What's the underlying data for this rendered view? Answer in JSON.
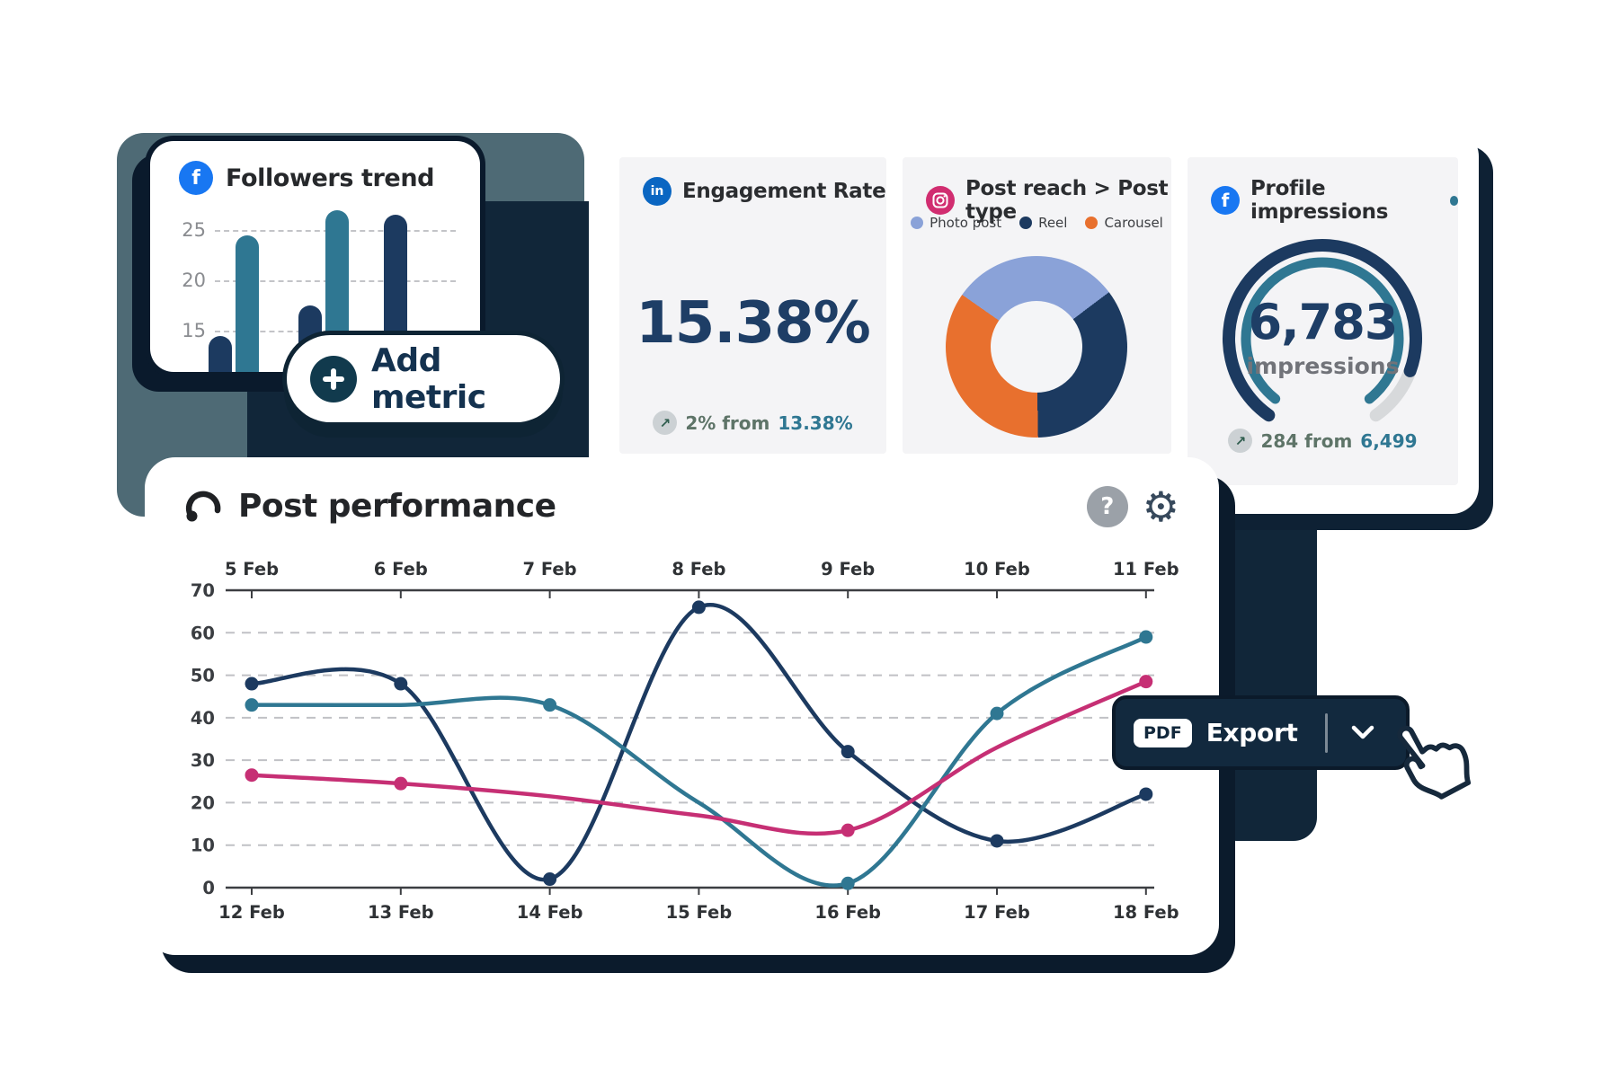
{
  "icons": {
    "facebook_glyph": "f",
    "linkedin_glyph": "in",
    "help_glyph": "?",
    "gear_glyph": "⚙",
    "arrow_up_right_glyph": "↗"
  },
  "followers": {
    "title": "Followers trend"
  },
  "engagement": {
    "title": "Engagement Rate",
    "value": "15.38%",
    "change_prefix": "2% from",
    "change_value": "13.38%"
  },
  "post_reach": {
    "title": "Post reach > Post type"
  },
  "impressions": {
    "title": "Profile impressions",
    "value": "6,783",
    "unit": "impressions",
    "change_prefix": "284 from",
    "change_value": "6,499"
  },
  "post_performance": {
    "title": "Post performance"
  },
  "add_metric": {
    "label": "Add metric"
  },
  "export": {
    "pdf_label": "PDF",
    "label": "Export"
  },
  "colors": {
    "navy": "#1c3a60",
    "teal": "#2f7792",
    "pink": "#c62f74",
    "orange": "#e8702e",
    "periwinkle": "#8aa2d8",
    "decor_navy": "#112639",
    "slate": "#4e6a75",
    "facebook_blue": "#1877f2",
    "linkedin_blue": "#0a66c2",
    "instagram_pink": "#d12d70"
  },
  "chart_data": [
    {
      "id": "followers_bar",
      "type": "bar",
      "title": "Followers trend",
      "y_ticks": [
        25,
        20,
        15
      ],
      "values": [
        14.5,
        24.5,
        17.5,
        27,
        26.5
      ],
      "bar_colors": [
        "#1c3a60",
        "#2f7792",
        "#1c3a60",
        "#2f7792",
        "#1c3a60"
      ],
      "grid": "dashed"
    },
    {
      "id": "reach_donut",
      "type": "pie",
      "title": "Post reach > Post type",
      "slices": [
        {
          "label": "Photo post",
          "value": 30,
          "color": "#8aa2d8"
        },
        {
          "label": "Reel",
          "value": 35,
          "color": "#1c3a60"
        },
        {
          "label": "Carousel",
          "value": 35,
          "color": "#e8702e"
        }
      ],
      "start_deg": 305,
      "legend_position": "top"
    },
    {
      "id": "impressions_gauge",
      "type": "gauge",
      "value": 6783,
      "previous": 6499,
      "percent": 88,
      "outer_color": "#1c3a60",
      "inner_color": "#2f7792",
      "track_color": "#d7d9db"
    },
    {
      "id": "performance_line",
      "type": "line",
      "title": "Post performance",
      "top_axis": [
        "5 Feb",
        "6 Feb",
        "7 Feb",
        "8 Feb",
        "9 Feb",
        "10 Feb",
        "11 Feb"
      ],
      "bottom_axis": [
        "12 Feb",
        "13 Feb",
        "14 Feb",
        "15 Feb",
        "16 Feb",
        "17 Feb",
        "18 Feb"
      ],
      "y_ticks": [
        70,
        60,
        50,
        40,
        30,
        20,
        10,
        0
      ],
      "ylim": [
        0,
        70
      ],
      "grid": "dashed",
      "series": [
        {
          "name": "series-navy",
          "color": "#1c3a60",
          "values": [
            48,
            48,
            2,
            66,
            32,
            11,
            22
          ],
          "dots": [
            0,
            1,
            2,
            3,
            4,
            5,
            6
          ]
        },
        {
          "name": "series-teal",
          "color": "#2f7792",
          "values": [
            43,
            43,
            43,
            20,
            1,
            41,
            59
          ],
          "dots": [
            0,
            2,
            4,
            5,
            6
          ]
        },
        {
          "name": "series-pink",
          "color": "#c62f74",
          "values": [
            26.5,
            24.5,
            21.5,
            17,
            13.5,
            33,
            48.5
          ],
          "dots": [
            0,
            1,
            4,
            6
          ]
        }
      ]
    }
  ]
}
